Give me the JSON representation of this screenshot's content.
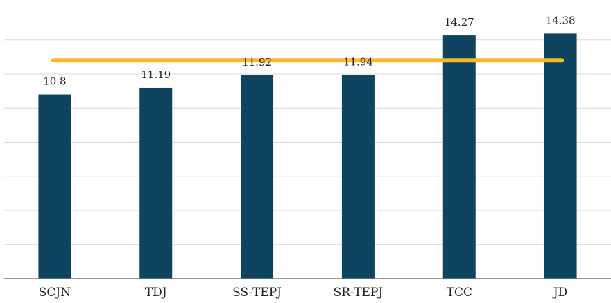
{
  "chart_data": {
    "type": "bar",
    "categories": [
      "SCJN",
      "TDJ",
      "SS-TEPJ",
      "SR-TEPJ",
      "TCC",
      "JD"
    ],
    "series": [
      {
        "values": [
          10.8,
          11.19,
          11.92,
          11.94,
          14.27,
          14.38
        ],
        "labels": [
          "10.8",
          "11.19",
          "11.92",
          "11.94",
          "14.27",
          "14.38"
        ],
        "color": "#0e4460"
      }
    ],
    "reference_line": {
      "value": 12.8,
      "color": "#f7b929"
    },
    "ylim": [
      0,
      16
    ],
    "grid": true,
    "gridlines": [
      0,
      2,
      4,
      6,
      8,
      10,
      12,
      14,
      16
    ],
    "axis_line_color": "#9a9a9a",
    "grid_color": "#d9d9d9",
    "label_color": "#222222"
  }
}
